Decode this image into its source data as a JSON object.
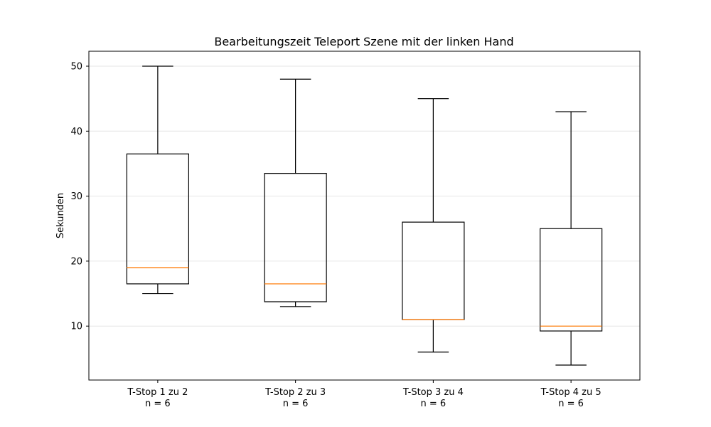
{
  "chart_data": {
    "type": "box",
    "title": "Bearbeitungszeit Teleport Szene mit der linken Hand",
    "xlabel": "",
    "ylabel": "Sekunden",
    "ylim": [
      1.7,
      52.3
    ],
    "yticks": [
      10,
      20,
      30,
      40,
      50
    ],
    "grid": "y",
    "categories": [
      {
        "label": "T-Stop 1 zu 2",
        "n_label": "n = 6"
      },
      {
        "label": "T-Stop 2 zu 3",
        "n_label": "n = 6"
      },
      {
        "label": "T-Stop 3 zu 4",
        "n_label": "n = 6"
      },
      {
        "label": "T-Stop 4 zu 5",
        "n_label": "n = 6"
      }
    ],
    "series": [
      {
        "whisker_low": 15,
        "q1": 16.5,
        "median": 19,
        "q3": 36.5,
        "whisker_high": 50
      },
      {
        "whisker_low": 13,
        "q1": 13.75,
        "median": 16.5,
        "q3": 33.5,
        "whisker_high": 48
      },
      {
        "whisker_low": 6,
        "q1": 11,
        "median": 11,
        "q3": 26,
        "whisker_high": 45
      },
      {
        "whisker_low": 4,
        "q1": 9.25,
        "median": 10,
        "q3": 25,
        "whisker_high": 43
      }
    ],
    "colors": {
      "box": "#000000",
      "median": "#ff7f0e",
      "grid": "#e6e6e6"
    }
  }
}
